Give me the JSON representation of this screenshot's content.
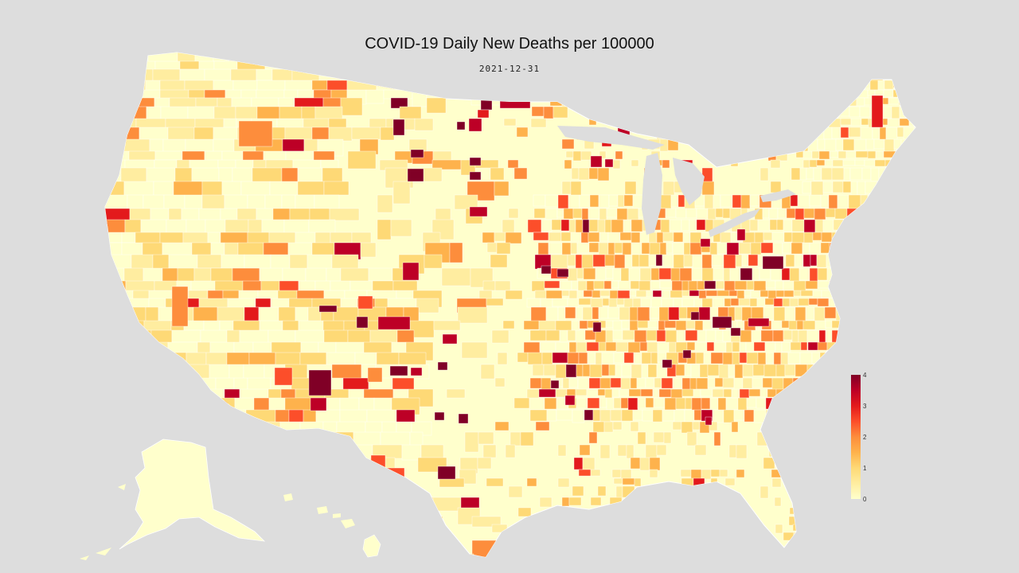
{
  "title": "COVID-19 Daily New Deaths per 100000",
  "date": "2021-12-31",
  "colorbar": {
    "min": 0,
    "max": 4,
    "ticks": [
      "0",
      "1",
      "2",
      "3",
      "4"
    ],
    "colors": [
      "#ffffcc",
      "#ffeda0",
      "#fed976",
      "#feb24c",
      "#fd8d3c",
      "#fc4e2a",
      "#e31a1c",
      "#bd0026",
      "#800026"
    ]
  },
  "map_colors": {
    "background": "#dddddd",
    "land_base": "#ffffcc",
    "county_border": "#ffffff"
  }
}
